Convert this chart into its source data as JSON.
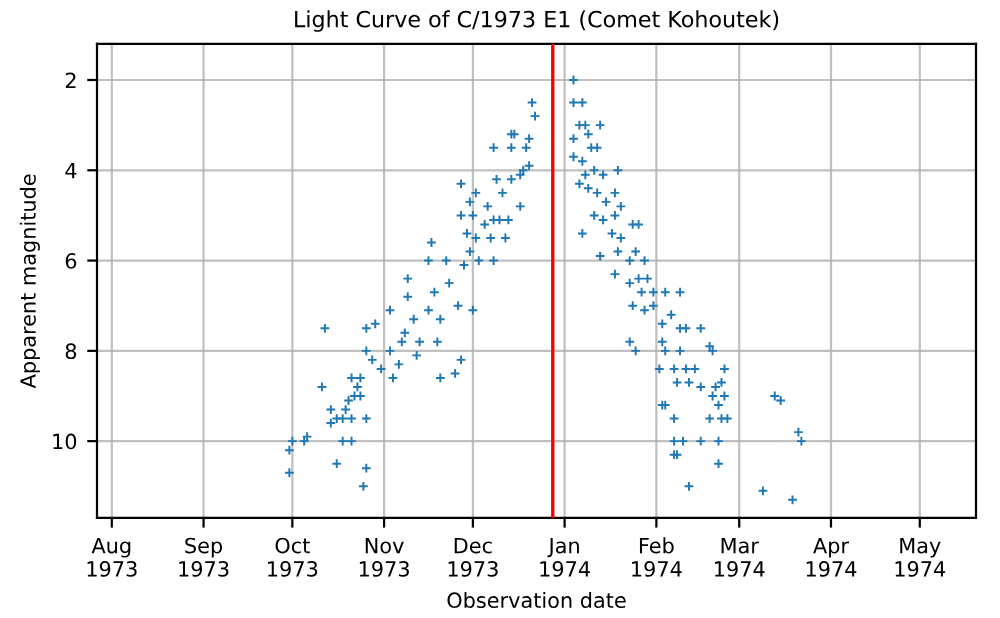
{
  "chart_data": {
    "type": "scatter",
    "title": "Light Curve of C/1973 E1 (Comet Kohoutek)",
    "xlabel": "Observation date",
    "ylabel": "Apparent magnitude",
    "series": [
      {
        "color": "#1f77b4",
        "x": [
          "1973-09-30",
          "1973-09-30",
          "1973-10-01",
          "1973-10-05",
          "1973-10-06",
          "1973-10-12",
          "1973-10-11",
          "1973-10-14",
          "1973-10-16",
          "1973-10-18",
          "1973-10-14",
          "1973-10-18",
          "1973-10-21",
          "1973-10-16",
          "1973-10-21",
          "1973-10-19",
          "1973-10-20",
          "1973-10-21",
          "1973-10-22",
          "1973-10-24",
          "1973-10-26",
          "1973-10-26",
          "1973-10-25",
          "1973-10-23",
          "1973-10-24",
          "1973-10-26",
          "1973-10-26",
          "1973-10-29",
          "1973-10-28",
          "1973-10-31",
          "1973-11-03",
          "1973-11-04",
          "1973-11-06",
          "1973-11-07",
          "1973-11-03",
          "1973-11-08",
          "1973-11-09",
          "1973-11-09",
          "1973-11-11",
          "1973-11-12",
          "1973-11-13",
          "1973-11-16",
          "1973-11-16",
          "1973-11-17",
          "1973-11-18",
          "1973-11-19",
          "1973-11-20",
          "1973-11-20",
          "1973-11-22",
          "1973-11-23",
          "1973-11-25",
          "1973-11-26",
          "1973-11-27",
          "1973-11-27",
          "1973-11-27",
          "1973-11-28",
          "1973-11-29",
          "1973-11-30",
          "1973-11-30",
          "1973-12-01",
          "1973-12-01",
          "1973-12-02",
          "1973-12-02",
          "1973-12-03",
          "1973-12-05",
          "1973-12-06",
          "1973-12-07",
          "1973-12-08",
          "1973-12-08",
          "1973-12-09",
          "1973-12-10",
          "1973-12-11",
          "1973-12-12",
          "1973-12-13",
          "1973-12-14",
          "1973-12-14",
          "1973-12-15",
          "1973-12-17",
          "1973-12-17",
          "1973-12-18",
          "1973-12-19",
          "1973-12-20",
          "1973-12-20",
          "1973-12-21",
          "1973-12-22",
          "1973-12-08",
          "1973-12-14",
          "1974-01-04",
          "1974-01-04",
          "1974-01-07",
          "1974-01-06",
          "1974-01-08",
          "1974-01-04",
          "1974-01-09",
          "1974-01-13",
          "1974-01-04",
          "1974-01-07",
          "1974-01-10",
          "1974-01-12",
          "1974-01-08",
          "1974-01-11",
          "1974-01-14",
          "1974-01-19",
          "1974-01-06",
          "1974-01-09",
          "1974-01-12",
          "1974-01-15",
          "1974-01-18",
          "1974-01-11",
          "1974-01-14",
          "1974-01-18",
          "1974-01-20",
          "1974-01-07",
          "1974-01-17",
          "1974-01-20",
          "1974-01-24",
          "1974-01-26",
          "1974-01-13",
          "1974-01-19",
          "1974-01-23",
          "1974-01-25",
          "1974-01-28",
          "1974-01-18",
          "1974-01-23",
          "1974-01-26",
          "1974-01-29",
          "1974-01-31",
          "1974-01-27",
          "1974-02-04",
          "1974-02-09",
          "1974-01-24",
          "1974-01-28",
          "1974-01-31",
          "1974-02-06",
          "1974-02-03",
          "1974-02-09",
          "1974-02-11",
          "1974-02-16",
          "1974-01-23",
          "1974-01-25",
          "1974-02-03",
          "1974-02-04",
          "1974-02-09",
          "1974-02-19",
          "1974-02-20",
          "1974-02-02",
          "1974-02-07",
          "1974-02-11",
          "1974-02-14",
          "1974-02-24",
          "1974-02-08",
          "1974-02-12",
          "1974-02-16",
          "1974-02-21",
          "1974-02-23",
          "1974-02-20",
          "1974-02-24",
          "1974-03-13",
          "1974-03-15",
          "1974-02-03",
          "1974-02-04",
          "1974-02-22",
          "1974-02-23",
          "1974-02-25",
          "1974-02-07",
          "1974-02-19",
          "1974-03-21",
          "1974-03-22",
          "1974-02-07",
          "1974-02-10",
          "1974-02-16",
          "1974-02-22",
          "1974-02-07",
          "1974-02-08",
          "1974-02-22",
          "1974-02-12",
          "1974-03-09",
          "1974-03-19"
        ],
        "values": [
          10.7,
          10.2,
          10.0,
          10.0,
          9.9,
          7.5,
          8.8,
          9.6,
          9.5,
          9.5,
          9.3,
          10.0,
          10.0,
          10.5,
          9.5,
          9.3,
          9.1,
          8.6,
          9.0,
          9.0,
          9.5,
          10.6,
          11.0,
          8.8,
          8.6,
          8.0,
          7.5,
          7.4,
          8.2,
          8.4,
          8.0,
          8.6,
          8.3,
          7.8,
          7.1,
          7.6,
          6.8,
          6.4,
          7.3,
          8.1,
          7.8,
          7.1,
          6.0,
          5.6,
          6.7,
          7.8,
          7.3,
          8.6,
          6.0,
          6.5,
          8.5,
          7.0,
          5.0,
          8.2,
          4.3,
          6.1,
          5.4,
          4.7,
          5.8,
          7.1,
          5.0,
          5.5,
          4.5,
          6.0,
          5.2,
          4.8,
          5.5,
          6.0,
          5.1,
          4.2,
          5.1,
          4.5,
          5.5,
          5.1,
          4.2,
          3.2,
          3.2,
          4.8,
          4.1,
          4.0,
          3.5,
          3.9,
          3.3,
          2.5,
          2.8,
          3.5,
          3.5,
          2.0,
          2.5,
          2.5,
          3.0,
          3.0,
          3.3,
          3.2,
          3.0,
          3.7,
          3.8,
          3.5,
          3.5,
          4.1,
          4.0,
          4.1,
          4.0,
          4.3,
          4.4,
          4.5,
          4.7,
          4.5,
          5.0,
          5.1,
          5.0,
          4.8,
          5.4,
          5.4,
          5.5,
          5.2,
          5.2,
          5.9,
          5.8,
          6.0,
          5.8,
          6.0,
          6.3,
          6.5,
          6.4,
          6.4,
          6.7,
          6.7,
          6.7,
          6.7,
          7.0,
          7.1,
          7.0,
          7.2,
          7.4,
          7.5,
          7.5,
          7.5,
          7.8,
          8.0,
          7.8,
          8.0,
          8.0,
          7.9,
          8.0,
          8.4,
          8.4,
          8.4,
          8.4,
          8.4,
          8.7,
          8.7,
          8.8,
          8.8,
          8.7,
          9.0,
          9.0,
          9.0,
          9.1,
          9.2,
          9.2,
          9.2,
          9.5,
          9.5,
          9.5,
          9.5,
          9.8,
          10.0,
          10.0,
          10.0,
          10.0,
          10.0,
          10.3,
          10.3,
          10.5,
          11.0,
          11.1,
          11.3
        ]
      }
    ],
    "marker": "cross",
    "xlim": [
      "1973-07-27",
      "1974-05-20"
    ],
    "xticks": [
      {
        "value": "1973-08-01",
        "label": "Aug\n1973"
      },
      {
        "value": "1973-09-01",
        "label": "Sep\n1973"
      },
      {
        "value": "1973-10-01",
        "label": "Oct\n1973"
      },
      {
        "value": "1973-11-01",
        "label": "Nov\n1973"
      },
      {
        "value": "1973-12-01",
        "label": "Dec\n1973"
      },
      {
        "value": "1974-01-01",
        "label": "Jan\n1974"
      },
      {
        "value": "1974-02-01",
        "label": "Feb\n1974"
      },
      {
        "value": "1974-03-01",
        "label": "Mar\n1974"
      },
      {
        "value": "1974-04-01",
        "label": "Apr\n1974"
      },
      {
        "value": "1974-05-01",
        "label": "May\n1974"
      }
    ],
    "ylim": [
      11.7,
      1.2
    ],
    "yticks": [
      2,
      4,
      6,
      8,
      10
    ],
    "ref_lines": [
      {
        "axis": "x",
        "value": "1973-12-28",
        "color": "#ff0000"
      }
    ],
    "grid": true
  }
}
